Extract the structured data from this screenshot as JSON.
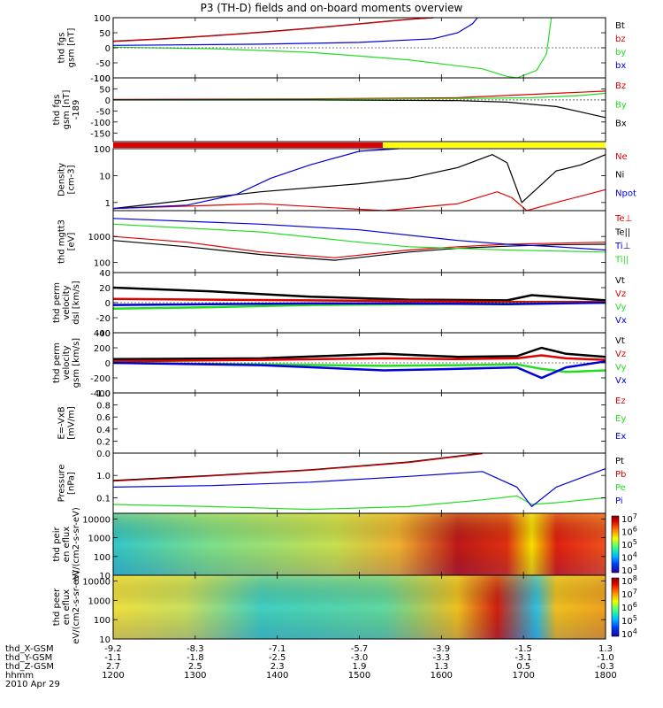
{
  "title": "P3 (TH-D) fields and on-board moments overview",
  "colors": {
    "black": "#000000",
    "red": "#e00000",
    "green": "#22dd22",
    "blue": "#0000dd",
    "yellow": "#ffff00"
  },
  "chart_data": [
    {
      "type": "line",
      "name": "fgs-field",
      "ylabel": "thd fgs gsm [nT]",
      "ylim": [
        -100,
        100
      ],
      "yticks": [
        "100",
        "50",
        "0",
        "-50",
        "-100"
      ],
      "ytick_values": [
        100,
        50,
        0,
        -50,
        -100
      ],
      "series": [
        {
          "name": "Bt",
          "color": "#000000",
          "x": [
            0,
            0.1,
            0.2,
            0.3,
            0.4,
            0.5,
            0.6,
            0.65
          ],
          "y": [
            22,
            30,
            40,
            52,
            65,
            80,
            95,
            105
          ]
        },
        {
          "name": "bz",
          "color": "#e00000",
          "x": [
            0,
            0.1,
            0.2,
            0.3,
            0.4,
            0.5,
            0.6,
            0.65
          ],
          "y": [
            21,
            29,
            39,
            51,
            64,
            79,
            94,
            104
          ]
        },
        {
          "name": "by",
          "color": "#22dd22",
          "x": [
            0,
            0.2,
            0.4,
            0.6,
            0.75,
            0.8,
            0.82,
            0.86,
            0.88,
            0.89
          ],
          "y": [
            2,
            -3,
            -15,
            -40,
            -70,
            -95,
            -100,
            -75,
            -20,
            105
          ]
        },
        {
          "name": "bx",
          "color": "#0000dd",
          "x": [
            0,
            0.3,
            0.5,
            0.65,
            0.7,
            0.73,
            0.74
          ],
          "y": [
            8,
            12,
            18,
            30,
            50,
            80,
            105
          ]
        }
      ]
    },
    {
      "type": "line",
      "name": "fgs-field-2",
      "ylabel": "thd fgs gsm [nT] -189",
      "ylim": [
        -189,
        100
      ],
      "yticks": [
        "100",
        "50",
        "0",
        "-50",
        "-100",
        "-150"
      ],
      "ytick_values": [
        100,
        50,
        0,
        -50,
        -100,
        -150
      ],
      "series": [
        {
          "name": "Bz",
          "color": "#e00000",
          "x": [
            0,
            0.4,
            0.7,
            0.8,
            0.9,
            0.95,
            1.0
          ],
          "y": [
            2,
            5,
            10,
            20,
            30,
            35,
            40
          ]
        },
        {
          "name": "By",
          "color": "#22dd22",
          "x": [
            0,
            0.4,
            0.7,
            0.85,
            0.95,
            1.0
          ],
          "y": [
            0,
            3,
            6,
            10,
            20,
            30
          ]
        },
        {
          "name": "Bx",
          "color": "#000000",
          "x": [
            0,
            0.4,
            0.7,
            0.8,
            0.9,
            0.95,
            1.0
          ],
          "y": [
            0,
            0,
            -3,
            -10,
            -30,
            -55,
            -80
          ]
        }
      ]
    },
    {
      "type": "line",
      "name": "density",
      "ylabel": "Density [cm-3]",
      "yscale": "log",
      "ylim": [
        0.5,
        100
      ],
      "yticks": [
        "100",
        "10",
        "1"
      ],
      "ytick_values": [
        100,
        10,
        1
      ],
      "series": [
        {
          "name": "Ne",
          "color": "#e00000",
          "x": [
            0,
            0.3,
            0.55,
            0.7,
            0.78,
            0.81,
            0.84,
            0.9,
            1.0
          ],
          "y": [
            0.6,
            0.9,
            0.45,
            0.9,
            2.5,
            1.5,
            0.5,
            1.0,
            3.0
          ]
        },
        {
          "name": "Ni",
          "color": "#000000",
          "x": [
            0,
            0.3,
            0.5,
            0.6,
            0.7,
            0.77,
            0.8,
            0.83,
            0.9,
            0.95,
            1.0
          ],
          "y": [
            0.6,
            2.5,
            5,
            8,
            20,
            60,
            30,
            1.0,
            15,
            25,
            60
          ]
        },
        {
          "name": "Npot",
          "color": "#0000dd",
          "x": [
            0,
            0.15,
            0.25,
            0.32,
            0.4,
            0.5,
            0.58
          ],
          "y": [
            0.6,
            0.8,
            2,
            8,
            25,
            80,
            130
          ]
        }
      ]
    },
    {
      "type": "line",
      "name": "temperature",
      "ylabel": "thd mgtt3 [eV]",
      "yscale": "log",
      "ylim": [
        40,
        10000
      ],
      "yticks": [
        "1000",
        "100"
      ],
      "ytick_values": [
        1000,
        100
      ],
      "series": [
        {
          "name": "Te⊥",
          "color": "#e00000",
          "x": [
            0,
            0.15,
            0.3,
            0.45,
            0.6,
            0.7,
            0.8,
            0.9,
            1.0
          ],
          "y": [
            1000,
            600,
            250,
            150,
            300,
            400,
            500,
            550,
            600
          ]
        },
        {
          "name": "Te||",
          "color": "#000000",
          "x": [
            0,
            0.15,
            0.3,
            0.45,
            0.6,
            0.7,
            0.8,
            0.9,
            1.0
          ],
          "y": [
            700,
            400,
            200,
            120,
            250,
            350,
            420,
            480,
            500
          ]
        },
        {
          "name": "Ti⊥",
          "color": "#0000dd",
          "x": [
            0,
            0.3,
            0.5,
            0.7,
            0.8,
            0.9,
            1.0
          ],
          "y": [
            5000,
            3000,
            1800,
            700,
            500,
            400,
            300
          ]
        },
        {
          "name": "Ti||",
          "color": "#22dd22",
          "x": [
            0,
            0.3,
            0.5,
            0.6,
            0.8,
            1.0
          ],
          "y": [
            3000,
            1500,
            600,
            400,
            300,
            250
          ]
        }
      ]
    },
    {
      "type": "line",
      "name": "perm-velocity-dsl",
      "ylabel": "thd perm velocity dsl [km/s]",
      "ylim": [
        -40,
        40
      ],
      "yticks": [
        "40",
        "20",
        "0",
        "-20",
        "-40"
      ],
      "ytick_values": [
        40,
        20,
        0,
        -20,
        -40
      ],
      "series": [
        {
          "name": "Vt",
          "color": "#000000",
          "x": [
            0,
            0.2,
            0.4,
            0.6,
            0.8,
            0.85,
            1.0
          ],
          "y": [
            20,
            15,
            8,
            4,
            3,
            10,
            3
          ]
        },
        {
          "name": "Vz",
          "color": "#e00000",
          "x": [
            0,
            0.2,
            0.4,
            0.6,
            0.8,
            1.0
          ],
          "y": [
            5,
            4,
            3,
            2,
            1,
            1
          ]
        },
        {
          "name": "Vy",
          "color": "#22dd22",
          "x": [
            0,
            0.2,
            0.4,
            0.6,
            0.8,
            1.0
          ],
          "y": [
            -8,
            -6,
            -3,
            -2,
            -1,
            0
          ]
        },
        {
          "name": "Vx",
          "color": "#0000dd",
          "x": [
            0,
            0.2,
            0.4,
            0.6,
            0.8,
            1.0
          ],
          "y": [
            -3,
            -2,
            -1,
            -1,
            -2,
            0
          ]
        }
      ]
    },
    {
      "type": "line",
      "name": "perm-velocity-gsm",
      "ylabel": "thd perm velocity gsm [km/s]",
      "ylim": [
        -400,
        400
      ],
      "yticks": [
        "400",
        "200",
        "0",
        "-200",
        "-400"
      ],
      "ytick_values": [
        400,
        200,
        0,
        -200,
        -400
      ],
      "series": [
        {
          "name": "Vt",
          "color": "#000000",
          "x": [
            0,
            0.3,
            0.55,
            0.7,
            0.82,
            0.87,
            0.92,
            1.0
          ],
          "y": [
            50,
            60,
            120,
            80,
            90,
            200,
            120,
            80
          ]
        },
        {
          "name": "Vz",
          "color": "#e00000",
          "x": [
            0,
            0.3,
            0.55,
            0.7,
            0.82,
            0.87,
            0.92,
            1.0
          ],
          "y": [
            20,
            40,
            60,
            50,
            60,
            100,
            60,
            40
          ]
        },
        {
          "name": "Vy",
          "color": "#22dd22",
          "x": [
            0,
            0.3,
            0.55,
            0.7,
            0.82,
            0.87,
            0.92,
            1.0
          ],
          "y": [
            0,
            -20,
            -40,
            -30,
            -20,
            -80,
            -120,
            -100
          ]
        },
        {
          "name": "Vx",
          "color": "#0000dd",
          "x": [
            0,
            0.3,
            0.55,
            0.7,
            0.82,
            0.87,
            0.92,
            1.0
          ],
          "y": [
            0,
            -30,
            -100,
            -80,
            -60,
            -200,
            -60,
            20
          ]
        }
      ]
    },
    {
      "type": "line",
      "name": "electric-field",
      "ylabel": "E=-VxB [mV/m]",
      "ylim": [
        0,
        1
      ],
      "yticks": [
        "1.0",
        "0.8",
        "0.6",
        "0.4",
        "0.2",
        "0.0"
      ],
      "ytick_values": [
        1.0,
        0.8,
        0.6,
        0.4,
        0.2,
        0.0
      ],
      "series": [
        {
          "name": "Ez",
          "color": "#e00000",
          "x": [],
          "y": []
        },
        {
          "name": "Ey",
          "color": "#22dd22",
          "x": [],
          "y": []
        },
        {
          "name": "Ex",
          "color": "#0000dd",
          "x": [],
          "y": []
        }
      ]
    },
    {
      "type": "line",
      "name": "pressure",
      "ylabel": "Pressure [nPa]",
      "yscale": "log",
      "ylim": [
        0.02,
        10
      ],
      "yticks": [
        "1.0",
        "0.1"
      ],
      "ytick_values": [
        1.0,
        0.1
      ],
      "series": [
        {
          "name": "Pt",
          "color": "#000000",
          "x": [
            0,
            0.2,
            0.4,
            0.6,
            0.75
          ],
          "y": [
            0.6,
            1.0,
            1.8,
            4,
            10
          ]
        },
        {
          "name": "Pb",
          "color": "#e00000",
          "x": [
            0,
            0.2,
            0.4,
            0.6,
            0.75
          ],
          "y": [
            0.55,
            0.95,
            1.7,
            3.8,
            9.5
          ]
        },
        {
          "name": "Pe",
          "color": "#22dd22",
          "x": [
            0,
            0.2,
            0.4,
            0.6,
            0.75,
            0.82,
            0.85,
            0.9,
            1.0
          ],
          "y": [
            0.05,
            0.04,
            0.03,
            0.04,
            0.08,
            0.12,
            0.05,
            0.06,
            0.1
          ]
        },
        {
          "name": "Pi",
          "color": "#0000dd",
          "x": [
            0,
            0.2,
            0.4,
            0.6,
            0.75,
            0.82,
            0.85,
            0.9,
            1.0
          ],
          "y": [
            0.3,
            0.35,
            0.5,
            0.9,
            1.5,
            0.3,
            0.04,
            0.3,
            2
          ]
        }
      ]
    },
    {
      "type": "heatmap",
      "name": "ion-spectrogram",
      "ylabel": "thd peir en eflux eV/(cm2-s-sr-eV)",
      "yscale": "log",
      "ylim": [
        10,
        20000
      ],
      "yticks": [
        "10000",
        "1000",
        "100",
        "10"
      ],
      "ytick_values": [
        10000,
        1000,
        100,
        10
      ],
      "colorbar": {
        "ticks": [
          "10^7",
          "10^6",
          "10^5",
          "10^4",
          "10^3"
        ]
      }
    },
    {
      "type": "heatmap",
      "name": "electron-spectrogram",
      "ylabel": "thd peer en eflux eV/(cm2-s-sr-eV)",
      "yscale": "log",
      "ylim": [
        10,
        20000
      ],
      "yticks": [
        "10000",
        "1000",
        "100",
        "10"
      ],
      "ytick_values": [
        10000,
        1000,
        100,
        10
      ],
      "colorbar": {
        "ticks": [
          "10^8",
          "10^7",
          "10^6",
          "10^5",
          "10^4"
        ]
      }
    }
  ],
  "ephemeris": {
    "labels": [
      "thd_X-GSM",
      "thd_Y-GSM",
      "thd_Z-GSM",
      "hhmm",
      "2010 Apr 29"
    ],
    "columns": [
      {
        "x": "-9.2",
        "y": "-1.1",
        "z": "2.7",
        "t": "1200"
      },
      {
        "x": "-8.3",
        "y": "-1.8",
        "z": "2.5",
        "t": "1300"
      },
      {
        "x": "-7.1",
        "y": "-2.5",
        "z": "2.3",
        "t": "1400"
      },
      {
        "x": "-5.7",
        "y": "-3.0",
        "z": "1.9",
        "t": "1500"
      },
      {
        "x": "-3.9",
        "y": "-3.3",
        "z": "1.3",
        "t": "1600"
      },
      {
        "x": "-1.5",
        "y": "-3.1",
        "z": "0.5",
        "t": "1700"
      },
      {
        "x": "1.3",
        "y": "-1.0",
        "z": "-0.3",
        "t": "1800"
      }
    ]
  }
}
